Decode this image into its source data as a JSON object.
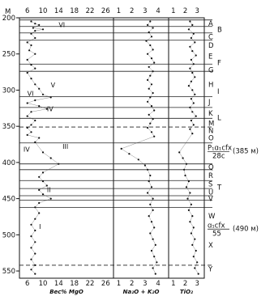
{
  "chart_data": {
    "type": "scatter",
    "y_axis": {
      "label": "M",
      "ticks": [
        200,
        250,
        300,
        350,
        400,
        450,
        500,
        550
      ],
      "range": [
        200,
        560
      ],
      "inverted": true
    },
    "panels": [
      {
        "id": "mgo",
        "xlabel": "Вес% MgO",
        "xticks_top": [
          "6",
          "10",
          "14",
          "18",
          "22",
          "26"
        ],
        "xticks_bottom": [
          "6",
          "10",
          "14",
          "18",
          "22",
          "26"
        ],
        "xlim": [
          4,
          28
        ],
        "roman_labels": [
          {
            "text": "VI",
            "x": 14,
            "y": 213
          },
          {
            "text": "V",
            "x": 12,
            "y": 296
          },
          {
            "text": "VI",
            "x": 6,
            "y": 308
          },
          {
            "text": "IV",
            "x": 11,
            "y": 329
          },
          {
            "text": "IV",
            "x": 5,
            "y": 385
          },
          {
            "text": "III",
            "x": 15,
            "y": 381
          },
          {
            "text": "II",
            "x": 11,
            "y": 441
          },
          {
            "text": "I",
            "x": 9,
            "y": 492
          }
        ],
        "points": [
          [
            7,
            205
          ],
          [
            8,
            208
          ],
          [
            9,
            210
          ],
          [
            7.5,
            214
          ],
          [
            8,
            218
          ],
          [
            10,
            216
          ],
          [
            7,
            222
          ],
          [
            8,
            228
          ],
          [
            6,
            234
          ],
          [
            7,
            238
          ],
          [
            6.5,
            245
          ],
          [
            8,
            250
          ],
          [
            6,
            258
          ],
          [
            7,
            265
          ],
          [
            8,
            270
          ],
          [
            6,
            276
          ],
          [
            7,
            284
          ],
          [
            8,
            292
          ],
          [
            9,
            298
          ],
          [
            10,
            306
          ],
          [
            12,
            310
          ],
          [
            8,
            314
          ],
          [
            6,
            318
          ],
          [
            9,
            322
          ],
          [
            11,
            326
          ],
          [
            7,
            330
          ],
          [
            6,
            336
          ],
          [
            8,
            342
          ],
          [
            7,
            348
          ],
          [
            6,
            352
          ],
          [
            7,
            358
          ],
          [
            6,
            362
          ],
          [
            9,
            366
          ],
          [
            8,
            372
          ],
          [
            10,
            386
          ],
          [
            12,
            394
          ],
          [
            14,
            402
          ],
          [
            10,
            414
          ],
          [
            9,
            420
          ],
          [
            10,
            426
          ],
          [
            11,
            432
          ],
          [
            9,
            438
          ],
          [
            10,
            444
          ],
          [
            12,
            450
          ],
          [
            9,
            456
          ],
          [
            8,
            462
          ],
          [
            9,
            470
          ],
          [
            8,
            478
          ],
          [
            7,
            486
          ],
          [
            8,
            494
          ],
          [
            7,
            502
          ],
          [
            8,
            510
          ],
          [
            7,
            518
          ],
          [
            8,
            526
          ],
          [
            7,
            534
          ],
          [
            8,
            542
          ],
          [
            7,
            548
          ],
          [
            8,
            554
          ]
        ]
      },
      {
        "id": "alk",
        "xlabel": "Na₂O + K₂O",
        "xticks_top": [
          "1",
          "2",
          "3",
          "4"
        ],
        "xticks_bottom": [
          "1",
          "2",
          "3",
          "4"
        ],
        "xlim": [
          0.6,
          4.8
        ],
        "points": [
          [
            3.4,
            205
          ],
          [
            3.2,
            210
          ],
          [
            3.6,
            214
          ],
          [
            3.3,
            220
          ],
          [
            3.5,
            226
          ],
          [
            3.1,
            232
          ],
          [
            3.4,
            238
          ],
          [
            3.6,
            244
          ],
          [
            3.2,
            250
          ],
          [
            3.5,
            256
          ],
          [
            3.7,
            262
          ],
          [
            3.3,
            268
          ],
          [
            3.6,
            274
          ],
          [
            3.4,
            280
          ],
          [
            3.2,
            286
          ],
          [
            3.5,
            292
          ],
          [
            3.3,
            298
          ],
          [
            3.6,
            304
          ],
          [
            3.4,
            310
          ],
          [
            3.2,
            316
          ],
          [
            3.5,
            322
          ],
          [
            3.7,
            328
          ],
          [
            3.3,
            334
          ],
          [
            3.6,
            340
          ],
          [
            3.4,
            346
          ],
          [
            3.2,
            352
          ],
          [
            3.5,
            358
          ],
          [
            3.7,
            364
          ],
          [
            1.2,
            381
          ],
          [
            1.8,
            388
          ],
          [
            2.5,
            396
          ],
          [
            3.0,
            404
          ],
          [
            3.2,
            410
          ],
          [
            3.4,
            418
          ],
          [
            3.3,
            426
          ],
          [
            3.5,
            434
          ],
          [
            3.2,
            442
          ],
          [
            3.6,
            450
          ],
          [
            3.4,
            458
          ],
          [
            3.6,
            466
          ],
          [
            3.3,
            474
          ],
          [
            3.5,
            482
          ],
          [
            3.7,
            490
          ],
          [
            3.4,
            498
          ],
          [
            3.6,
            506
          ],
          [
            3.8,
            514
          ],
          [
            3.5,
            522
          ],
          [
            3.7,
            530
          ],
          [
            3.9,
            538
          ],
          [
            3.6,
            546
          ],
          [
            3.8,
            554
          ]
        ]
      },
      {
        "id": "tio2",
        "xlabel": "TiO₂",
        "xticks_top": [
          "1",
          "2",
          "3"
        ],
        "xticks_bottom": [
          "1",
          "2",
          "3"
        ],
        "xlim": [
          0.6,
          3.6
        ],
        "points": [
          [
            2.4,
            205
          ],
          [
            2.6,
            210
          ],
          [
            2.3,
            216
          ],
          [
            2.7,
            222
          ],
          [
            2.5,
            228
          ],
          [
            2.8,
            234
          ],
          [
            2.4,
            240
          ],
          [
            2.6,
            246
          ],
          [
            2.9,
            252
          ],
          [
            2.5,
            258
          ],
          [
            2.7,
            264
          ],
          [
            2.4,
            270
          ],
          [
            2.6,
            276
          ],
          [
            2.8,
            282
          ],
          [
            2.5,
            288
          ],
          [
            2.3,
            294
          ],
          [
            2.6,
            300
          ],
          [
            2.8,
            306
          ],
          [
            2.5,
            312
          ],
          [
            2.7,
            318
          ],
          [
            2.4,
            324
          ],
          [
            2.6,
            330
          ],
          [
            2.9,
            336
          ],
          [
            2.5,
            342
          ],
          [
            2.7,
            348
          ],
          [
            2.4,
            354
          ],
          [
            2.6,
            360
          ],
          [
            1.5,
            386
          ],
          [
            1.8,
            394
          ],
          [
            2.1,
            402
          ],
          [
            1.9,
            410
          ],
          [
            2.0,
            418
          ],
          [
            2.3,
            426
          ],
          [
            2.1,
            434
          ],
          [
            2.4,
            442
          ],
          [
            2.2,
            450
          ],
          [
            2.5,
            458
          ],
          [
            2.3,
            466
          ],
          [
            2.6,
            474
          ],
          [
            2.4,
            482
          ],
          [
            2.7,
            490
          ],
          [
            2.5,
            498
          ],
          [
            2.8,
            506
          ],
          [
            2.6,
            514
          ],
          [
            2.9,
            522
          ],
          [
            2.7,
            530
          ],
          [
            3.0,
            538
          ],
          [
            2.8,
            546
          ],
          [
            3.1,
            554
          ]
        ]
      }
    ],
    "boundaries": [
      {
        "y": 203
      },
      {
        "y": 212
      },
      {
        "y": 221
      },
      {
        "y": 231
      },
      {
        "y": 264
      },
      {
        "y": 274
      },
      {
        "y": 309
      },
      {
        "y": 324
      },
      {
        "y": 339
      },
      {
        "y": 351,
        "dashed": true
      },
      {
        "y": 373
      },
      {
        "y": 402
      },
      {
        "y": 410
      },
      {
        "y": 425
      },
      {
        "y": 436
      },
      {
        "y": 446
      },
      {
        "y": 452
      },
      {
        "y": 462
      },
      {
        "y": 542,
        "dashed": true
      }
    ],
    "zone_labels": [
      {
        "text": "A",
        "y": 208
      },
      {
        "text": "B",
        "y": 216,
        "offset": true
      },
      {
        "text": "C",
        "y": 226
      },
      {
        "text": "D",
        "y": 238
      },
      {
        "text": "E",
        "y": 253
      },
      {
        "text": "F",
        "y": 262,
        "offset": true
      },
      {
        "text": "G",
        "y": 272
      },
      {
        "text": "H",
        "y": 292
      },
      {
        "text": "I",
        "y": 302,
        "offset": true
      },
      {
        "text": "J",
        "y": 316
      },
      {
        "text": "K",
        "y": 332
      },
      {
        "text": "L",
        "y": 338,
        "offset": true
      },
      {
        "text": "M",
        "y": 346
      },
      {
        "text": "N",
        "y": 356
      },
      {
        "text": "O",
        "y": 366
      },
      {
        "text": "Q",
        "y": 406
      },
      {
        "text": "R",
        "y": 418
      },
      {
        "text": "S",
        "y": 430
      },
      {
        "text": "T",
        "y": 434,
        "offset": true
      },
      {
        "text": "U",
        "y": 441
      },
      {
        "text": "V",
        "y": 450
      },
      {
        "text": "W",
        "y": 474
      },
      {
        "text": "X",
        "y": 514
      },
      {
        "text": "Y",
        "y": 547
      }
    ],
    "formation_labels": [
      {
        "formula": "P₁ɑ₁cfx",
        "denominator": "28c",
        "note": "(385 м)",
        "y": 384
      },
      {
        "formula": "ɑ₁cfx",
        "denominator": "55",
        "note": "(490 м)",
        "y": 491
      }
    ]
  }
}
